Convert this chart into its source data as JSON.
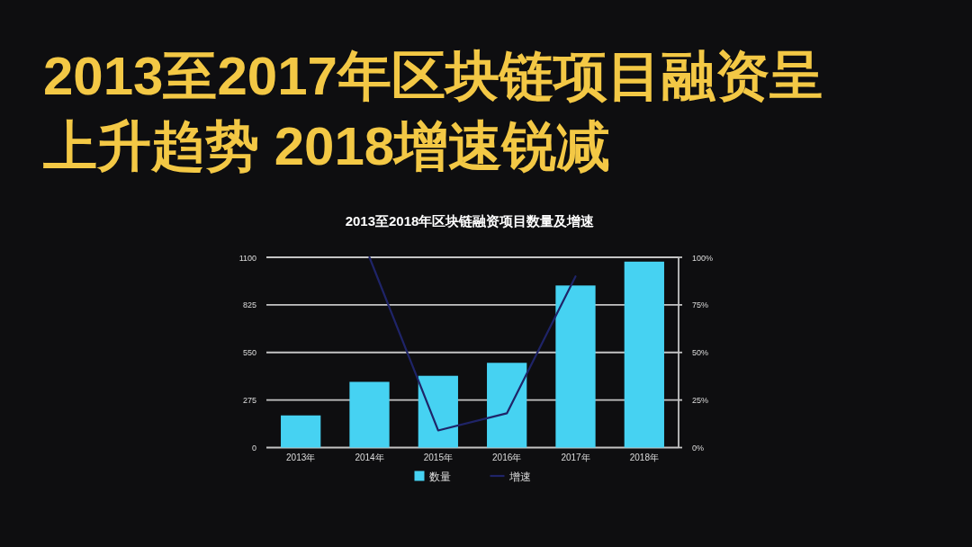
{
  "chart_data": {
    "type": "bar",
    "title": "2013至2017年区块链项目融资呈上升趋势 2018增速锐减",
    "subtitle": "2013至2018年区块链融资项目数量及增速",
    "categories": [
      "2013年",
      "2014年",
      "2015年",
      "2016年",
      "2017年",
      "2018年"
    ],
    "series": [
      {
        "name": "数量",
        "type": "bar",
        "color": "#46d2f2",
        "values": [
          186,
          380,
          415,
          490,
          937,
          1075
        ]
      },
      {
        "name": "增速",
        "type": "line",
        "axis": "y2",
        "color": "#1f2468",
        "values": [
          null,
          100,
          9,
          18,
          90,
          null
        ]
      }
    ],
    "ylim": [
      0,
      1100
    ],
    "yticks": [
      0,
      275,
      550,
      825,
      1100
    ],
    "y2lim": [
      0,
      100
    ],
    "y2ticks": [
      {
        "value": 0,
        "label": "0%"
      },
      {
        "value": 25,
        "label": "25%"
      },
      {
        "value": 50,
        "label": "50%"
      },
      {
        "value": 75,
        "label": "75%"
      },
      {
        "value": 100,
        "label": "100%"
      }
    ],
    "grid": "y",
    "legend": "bottom"
  }
}
